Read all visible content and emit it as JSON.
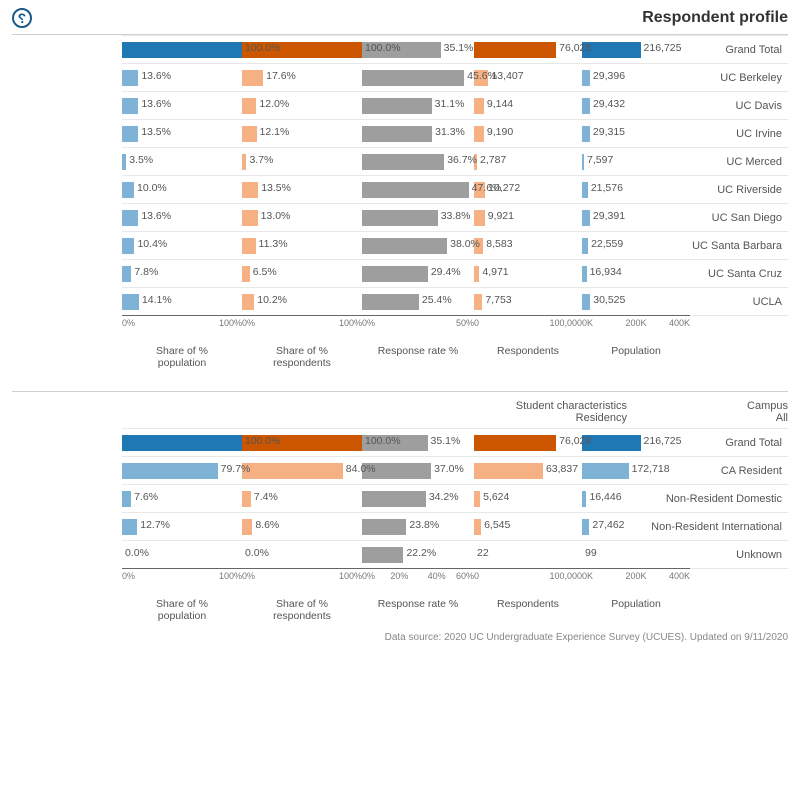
{
  "title": "Respondent profile",
  "help_glyph": "?",
  "footer": "Data source: 2020 UC Undergraduate Experience Survey (UCUES). Updated on 9/11/2020",
  "colors": {
    "population": "#1f77b4",
    "population_light": "#7fb3d5",
    "respondents": "#cc5500",
    "respondents_light": "#f5b183",
    "rate": "#9e9e9e",
    "grand_total_pop": "#1f77b4",
    "grand_total_resp": "#cc5500"
  },
  "panels": [
    {
      "filters": null,
      "columns": [
        {
          "key": "pop",
          "label": "Population",
          "max": 400000,
          "ticks": [
            "0K",
            "200K",
            "400K"
          ],
          "color": "population",
          "light": "population_light",
          "fmt": "int"
        },
        {
          "key": "resp",
          "label": "Respondents",
          "max": 100000,
          "ticks": [
            "0",
            "100,000"
          ],
          "color": "respondents",
          "light": "respondents_light",
          "fmt": "int"
        },
        {
          "key": "rate",
          "label": "% Response rate",
          "max": 50,
          "ticks": [
            "0%",
            "50%"
          ],
          "color": "rate",
          "light": "rate",
          "fmt": "pct"
        },
        {
          "key": "shresp",
          "label": "% Share of\nrespondents",
          "max": 100,
          "ticks": [
            "0%",
            "100%"
          ],
          "color": "respondents",
          "light": "respondents_light",
          "fmt": "pct"
        },
        {
          "key": "shpop",
          "label": "% Share of\npopulation",
          "max": 100,
          "ticks": [
            "0%",
            "100%"
          ],
          "color": "population",
          "light": "population_light",
          "fmt": "pct"
        }
      ],
      "rows": [
        {
          "label": "Grand Total",
          "grand": true,
          "pop": 216725,
          "resp": 76028,
          "rate": 35.1,
          "shresp": 100.0,
          "shpop": 100.0
        },
        {
          "label": "UC Berkeley",
          "pop": 29396,
          "resp": 13407,
          "rate": 45.6,
          "shresp": 17.6,
          "shpop": 13.6
        },
        {
          "label": "UC Davis",
          "pop": 29432,
          "resp": 9144,
          "rate": 31.1,
          "shresp": 12.0,
          "shpop": 13.6
        },
        {
          "label": "UC Irvine",
          "pop": 29315,
          "resp": 9190,
          "rate": 31.3,
          "shresp": 12.1,
          "shpop": 13.5
        },
        {
          "label": "UC Merced",
          "pop": 7597,
          "resp": 2787,
          "rate": 36.7,
          "shresp": 3.7,
          "shpop": 3.5
        },
        {
          "label": "UC Riverside",
          "pop": 21576,
          "resp": 10272,
          "rate": 47.6,
          "shresp": 13.5,
          "shpop": 10.0
        },
        {
          "label": "UC San Diego",
          "pop": 29391,
          "resp": 9921,
          "rate": 33.8,
          "shresp": 13.0,
          "shpop": 13.6
        },
        {
          "label": "UC Santa Barbara",
          "pop": 22559,
          "resp": 8583,
          "rate": 38.0,
          "shresp": 11.3,
          "shpop": 10.4
        },
        {
          "label": "UC Santa Cruz",
          "pop": 16934,
          "resp": 4971,
          "rate": 29.4,
          "shresp": 6.5,
          "shpop": 7.8
        },
        {
          "label": "UCLA",
          "pop": 30525,
          "resp": 7753,
          "rate": 25.4,
          "shresp": 10.2,
          "shpop": 14.1
        }
      ]
    },
    {
      "filters": [
        {
          "label": "Campus",
          "value": "All"
        },
        {
          "label": "Student characteristics",
          "value": "Residency"
        }
      ],
      "columns": [
        {
          "key": "pop",
          "label": "Population",
          "max": 400000,
          "ticks": [
            "0K",
            "200K",
            "400K"
          ],
          "color": "population",
          "light": "population_light",
          "fmt": "int"
        },
        {
          "key": "resp",
          "label": "Respondents",
          "max": 100000,
          "ticks": [
            "0",
            "100,000"
          ],
          "color": "respondents",
          "light": "respondents_light",
          "fmt": "int"
        },
        {
          "key": "rate",
          "label": "% Response rate",
          "max": 60,
          "ticks": [
            "0%",
            "20%",
            "40%",
            "60%"
          ],
          "color": "rate",
          "light": "rate",
          "fmt": "pct"
        },
        {
          "key": "shresp",
          "label": "% Share of\nrespondents",
          "max": 100,
          "ticks": [
            "0%",
            "100%"
          ],
          "color": "respondents",
          "light": "respondents_light",
          "fmt": "pct"
        },
        {
          "key": "shpop",
          "label": "% Share of\npopulation",
          "max": 100,
          "ticks": [
            "0%",
            "100%"
          ],
          "color": "population",
          "light": "population_light",
          "fmt": "pct"
        }
      ],
      "rows": [
        {
          "label": "Grand Total",
          "grand": true,
          "pop": 216725,
          "resp": 76028,
          "rate": 35.1,
          "shresp": 100.0,
          "shpop": 100.0
        },
        {
          "label": "CA Resident",
          "pop": 172718,
          "resp": 63837,
          "rate": 37.0,
          "shresp": 84.0,
          "shpop": 79.7
        },
        {
          "label": "Non-Resident Domestic",
          "pop": 16446,
          "resp": 5624,
          "rate": 34.2,
          "shresp": 7.4,
          "shpop": 7.6
        },
        {
          "label": "Non-Resident International",
          "pop": 27462,
          "resp": 6545,
          "rate": 23.8,
          "shresp": 8.6,
          "shpop": 12.7
        },
        {
          "label": "Unknown",
          "pop": 99,
          "resp": 22,
          "rate": 22.2,
          "shresp": 0.0,
          "shpop": 0.0
        }
      ]
    }
  ]
}
